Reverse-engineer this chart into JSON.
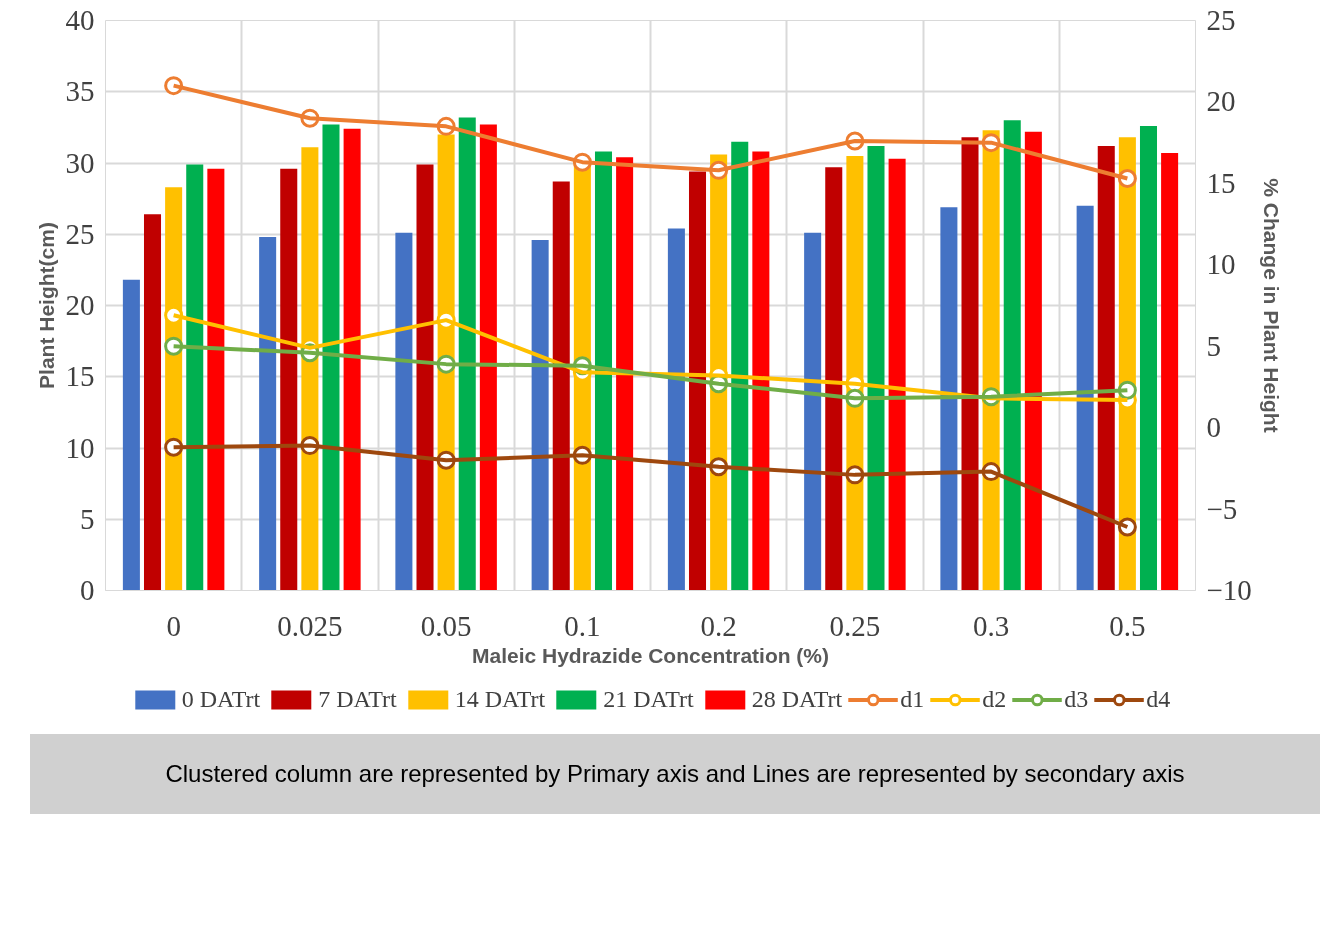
{
  "chart_data": {
    "type": "bar",
    "xlabel": "Maleic Hydrazide Concentration (%)",
    "ylabel": "Plant Height(cm)",
    "y2label": "% Change in Plant Height",
    "categories": [
      "0",
      "0.025",
      "0.05",
      "0.1",
      "0.2",
      "0.25",
      "0.3",
      "0.5"
    ],
    "series": [
      {
        "name": "0 DATrt",
        "color": "#4472c4",
        "values": [
          21.8,
          24.8,
          25.1,
          24.6,
          25.4,
          25.1,
          26.9,
          27.0
        ]
      },
      {
        "name": "7 DATrt",
        "color": "#c00000",
        "values": [
          26.4,
          29.6,
          29.9,
          28.7,
          29.4,
          29.7,
          31.8,
          31.2
        ]
      },
      {
        "name": "14 DATrt",
        "color": "#ffc000",
        "values": [
          28.3,
          31.1,
          32.0,
          29.9,
          30.6,
          30.5,
          32.3,
          31.8
        ]
      },
      {
        "name": "21 DATrt",
        "color": "#00b050",
        "values": [
          29.9,
          32.7,
          33.2,
          30.8,
          31.5,
          31.2,
          33.0,
          32.6
        ]
      },
      {
        "name": "28 DATrt",
        "color": "#ff0000",
        "values": [
          29.6,
          32.4,
          32.7,
          30.4,
          30.8,
          30.3,
          32.2,
          30.7
        ]
      },
      {
        "name": "d1",
        "type": "line",
        "axis": "y2",
        "color": "#ed7d31",
        "values": [
          21.0,
          19.0,
          18.5,
          16.3,
          15.8,
          17.6,
          17.5,
          15.3
        ]
      },
      {
        "name": "d2",
        "type": "line",
        "axis": "y2",
        "color": "#ffc000",
        "values": [
          6.9,
          4.9,
          6.6,
          3.4,
          3.2,
          2.7,
          1.8,
          1.7
        ]
      },
      {
        "name": "d3",
        "type": "line",
        "axis": "y2",
        "color": "#70ad47",
        "values": [
          5.0,
          4.6,
          3.9,
          3.8,
          2.7,
          1.8,
          1.9,
          2.3
        ]
      },
      {
        "name": "d4",
        "type": "line",
        "axis": "y2",
        "color": "#9e480e",
        "values": [
          -1.2,
          -1.1,
          -2.0,
          -1.7,
          -2.4,
          -2.9,
          -2.7,
          -6.1
        ]
      }
    ],
    "ylim": [
      0,
      40
    ],
    "yticks": [
      0,
      5,
      10,
      15,
      20,
      25,
      30,
      35,
      40
    ],
    "y2lim": [
      -10,
      25
    ],
    "y2ticks": [
      {
        "value": -10,
        "label": "−10"
      },
      {
        "value": -5,
        "label": "−5"
      },
      0,
      5,
      10,
      15,
      20,
      25
    ],
    "grid": true,
    "legend": "bottom",
    "marker": "circle",
    "annotations": [
      "Clustered column are represented by Primary axis and Lines are represented by secondary axis"
    ]
  }
}
